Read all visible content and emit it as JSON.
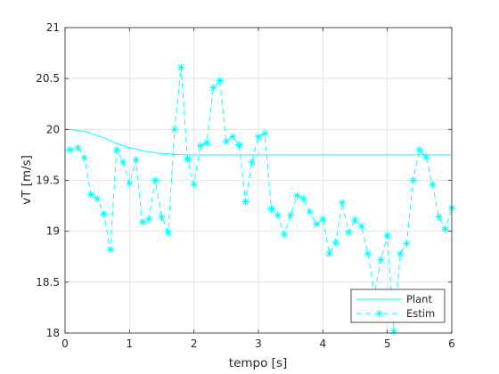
{
  "chart_data": {
    "type": "line",
    "xlabel": "tempo [s]",
    "ylabel": "vT [m/s]",
    "xlim": [
      0,
      6
    ],
    "ylim": [
      18,
      21
    ],
    "xticks": [
      "0",
      "1",
      "2",
      "3",
      "4",
      "5",
      "6"
    ],
    "yticks": [
      "18",
      "18.5",
      "19",
      "19.5",
      "20",
      "20.5",
      "21"
    ],
    "grid": true,
    "legend_position": "bottom-right",
    "colors": {
      "series": "#00ffff",
      "axis": "#262626",
      "grid": "#dfdfdf"
    },
    "series": [
      {
        "name": "Plant",
        "style": "solid",
        "x": [
          0,
          0.1,
          0.2,
          0.3,
          0.4,
          0.5,
          0.6,
          0.7,
          0.8,
          0.9,
          1.0,
          1.1,
          1.2,
          1.3,
          1.4,
          1.5,
          1.6,
          1.7,
          1.8,
          2.0,
          2.5,
          3.0,
          4.0,
          5.0,
          6.0
        ],
        "values": [
          20.0,
          20.0,
          19.99,
          19.98,
          19.96,
          19.94,
          19.92,
          19.89,
          19.86,
          19.84,
          19.82,
          19.81,
          19.79,
          19.78,
          19.77,
          19.765,
          19.76,
          19.755,
          19.752,
          19.75,
          19.75,
          19.75,
          19.75,
          19.75,
          19.75
        ]
      },
      {
        "name": "Estim",
        "style": "dashed-star",
        "x": [
          0.07,
          0.2,
          0.3,
          0.4,
          0.5,
          0.6,
          0.7,
          0.8,
          0.9,
          1.0,
          1.1,
          1.2,
          1.3,
          1.4,
          1.5,
          1.6,
          1.7,
          1.8,
          1.9,
          2.0,
          2.1,
          2.2,
          2.3,
          2.4,
          2.5,
          2.6,
          2.7,
          2.8,
          2.9,
          3.0,
          3.1,
          3.2,
          3.3,
          3.4,
          3.5,
          3.6,
          3.7,
          3.8,
          3.9,
          4.0,
          4.1,
          4.2,
          4.3,
          4.4,
          4.5,
          4.6,
          4.7,
          4.8,
          4.9,
          5.0,
          5.1,
          5.2,
          5.3,
          5.4,
          5.5,
          5.6,
          5.7,
          5.8,
          5.9,
          6.0
        ],
        "values": [
          19.8,
          19.82,
          19.72,
          19.36,
          19.32,
          19.17,
          18.82,
          19.8,
          19.68,
          19.47,
          19.7,
          19.09,
          19.12,
          19.5,
          19.14,
          18.99,
          20.0,
          20.61,
          19.71,
          19.46,
          19.84,
          19.87,
          20.41,
          20.48,
          19.88,
          19.93,
          19.85,
          19.29,
          19.68,
          19.93,
          19.96,
          19.22,
          19.16,
          18.97,
          19.16,
          19.35,
          19.32,
          19.19,
          19.07,
          19.12,
          18.78,
          18.89,
          19.28,
          18.99,
          19.11,
          19.05,
          18.78,
          18.38,
          18.72,
          18.96,
          18.02,
          18.78,
          18.88,
          19.5,
          19.8,
          19.73,
          19.46,
          19.14,
          19.02,
          19.23
        ]
      }
    ]
  }
}
